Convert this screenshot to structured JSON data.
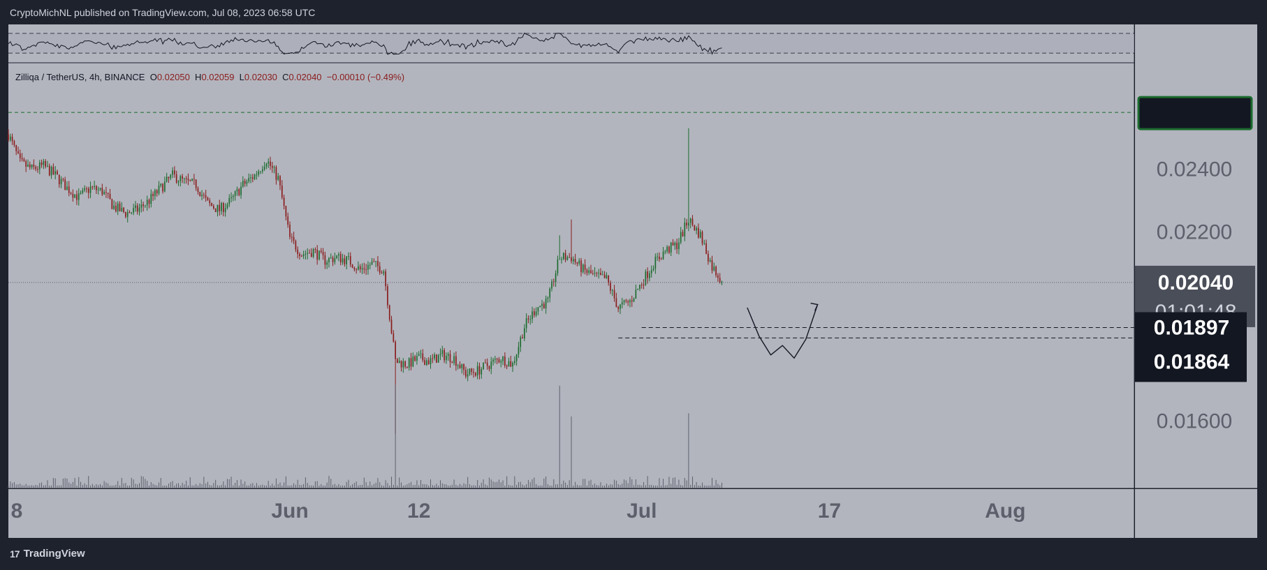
{
  "header": {
    "published": "CryptoMichNL published on TradingView.com, Jul 08, 2023 06:58 UTC"
  },
  "footer": {
    "brand": "TradingView"
  },
  "legend": {
    "symbol": "Zilliqa / TetherUS, 4h, BINANCE",
    "o_label": "O",
    "o_value": "0.02050",
    "h_label": "H",
    "h_value": "0.02059",
    "l_label": "L",
    "l_value": "0.02030",
    "c_label": "C",
    "c_value": "0.02040",
    "change": "−0.00010 (−0.49%)"
  },
  "colors": {
    "background": "#b2b5be",
    "frame": "#1e222d",
    "up": "#1b6b2e",
    "down": "#8a1c1c",
    "volume": "#5d606b",
    "scale_text": "#5d606b"
  },
  "chart_data": {
    "type": "candlestick",
    "symbol": "ZILUSDT",
    "interval": "4h",
    "exchange": "BINANCE",
    "price_axis": {
      "ticks": [
        "0.02400",
        "0.02200",
        "0.01600"
      ],
      "tick_values": [
        0.024,
        0.022,
        0.016
      ],
      "range": [
        0.01475,
        0.0266
      ]
    },
    "time_axis": {
      "ticks": [
        "8",
        "Jun",
        "12",
        "Jul",
        "17",
        "Aug"
      ],
      "tick_dates": [
        "2023-05-08",
        "2023-06-01",
        "2023-06-12",
        "2023-07-01",
        "2023-07-17",
        "2023-08-01"
      ],
      "range": [
        "2023-05-08",
        "2023-08-12"
      ]
    },
    "current": {
      "price_label": "0.02040",
      "price": 0.0204,
      "countdown": "01:01:48"
    },
    "levels": [
      {
        "label": "0.01897",
        "price": 0.01897,
        "start": "2023-07-01"
      },
      {
        "label": "0.01864",
        "price": 0.01864,
        "start": "2023-06-29"
      }
    ],
    "green_line_price": 0.0258,
    "path_close": [
      [
        "2023-05-08",
        0.0251
      ],
      [
        "2023-05-09",
        0.0242
      ],
      [
        "2023-05-10",
        0.024
      ],
      [
        "2023-05-11",
        0.0241
      ],
      [
        "2023-05-12",
        0.0238
      ],
      [
        "2023-05-13",
        0.0234
      ],
      [
        "2023-05-14",
        0.0231
      ],
      [
        "2023-05-15",
        0.0234
      ],
      [
        "2023-05-16",
        0.0233
      ],
      [
        "2023-05-17",
        0.0228
      ],
      [
        "2023-05-18",
        0.0226
      ],
      [
        "2023-05-19",
        0.0227
      ],
      [
        "2023-05-20",
        0.023
      ],
      [
        "2023-05-21",
        0.0234
      ],
      [
        "2023-05-22",
        0.0238
      ],
      [
        "2023-05-23",
        0.0236
      ],
      [
        "2023-05-24",
        0.0235
      ],
      [
        "2023-05-25",
        0.0229
      ],
      [
        "2023-05-26",
        0.0227
      ],
      [
        "2023-05-27",
        0.023
      ],
      [
        "2023-05-28",
        0.0235
      ],
      [
        "2023-05-29",
        0.0238
      ],
      [
        "2023-05-30",
        0.0243
      ],
      [
        "2023-05-31",
        0.0237
      ],
      [
        "2023-06-01",
        0.0218
      ],
      [
        "2023-06-02",
        0.0213
      ],
      [
        "2023-06-03",
        0.0214
      ],
      [
        "2023-06-04",
        0.0211
      ],
      [
        "2023-06-05",
        0.0212
      ],
      [
        "2023-06-06",
        0.0211
      ],
      [
        "2023-06-07",
        0.0208
      ],
      [
        "2023-06-08",
        0.021
      ],
      [
        "2023-06-09",
        0.0208
      ],
      [
        "2023-06-10",
        0.0179
      ],
      [
        "2023-06-11",
        0.0178
      ],
      [
        "2023-06-12",
        0.018
      ],
      [
        "2023-06-13",
        0.0179
      ],
      [
        "2023-06-14",
        0.0181
      ],
      [
        "2023-06-15",
        0.018
      ],
      [
        "2023-06-16",
        0.0175
      ],
      [
        "2023-06-17",
        0.0176
      ],
      [
        "2023-06-18",
        0.0178
      ],
      [
        "2023-06-19",
        0.018
      ],
      [
        "2023-06-20",
        0.0178
      ],
      [
        "2023-06-21",
        0.019
      ],
      [
        "2023-06-22",
        0.0196
      ],
      [
        "2023-06-23",
        0.0198
      ],
      [
        "2023-06-24",
        0.0212
      ],
      [
        "2023-06-25",
        0.0212
      ],
      [
        "2023-06-26",
        0.0208
      ],
      [
        "2023-06-27",
        0.0206
      ],
      [
        "2023-06-28",
        0.0205
      ],
      [
        "2023-06-29",
        0.0196
      ],
      [
        "2023-06-30",
        0.0198
      ],
      [
        "2023-07-01",
        0.0204
      ],
      [
        "2023-07-02",
        0.021
      ],
      [
        "2023-07-03",
        0.0214
      ],
      [
        "2023-07-04",
        0.0216
      ],
      [
        "2023-07-05",
        0.0224
      ],
      [
        "2023-07-06",
        0.0219
      ],
      [
        "2023-07-07",
        0.0209
      ],
      [
        "2023-07-08",
        0.0204
      ]
    ],
    "spikes": [
      {
        "date": "2023-06-10",
        "low": 0.0156
      },
      {
        "date": "2023-06-24",
        "high": 0.0219
      },
      {
        "date": "2023-06-25",
        "high": 0.0224
      },
      {
        "date": "2023-07-05",
        "high": 0.0253
      }
    ],
    "projection": [
      [
        "2023-07-10",
        0.0196
      ],
      [
        "2023-07-11",
        0.0187
      ],
      [
        "2023-07-12",
        0.0181
      ],
      [
        "2023-07-13",
        0.0184
      ],
      [
        "2023-07-14",
        0.018
      ],
      [
        "2023-07-15",
        0.0186
      ],
      [
        "2023-07-16",
        0.0197
      ]
    ]
  }
}
